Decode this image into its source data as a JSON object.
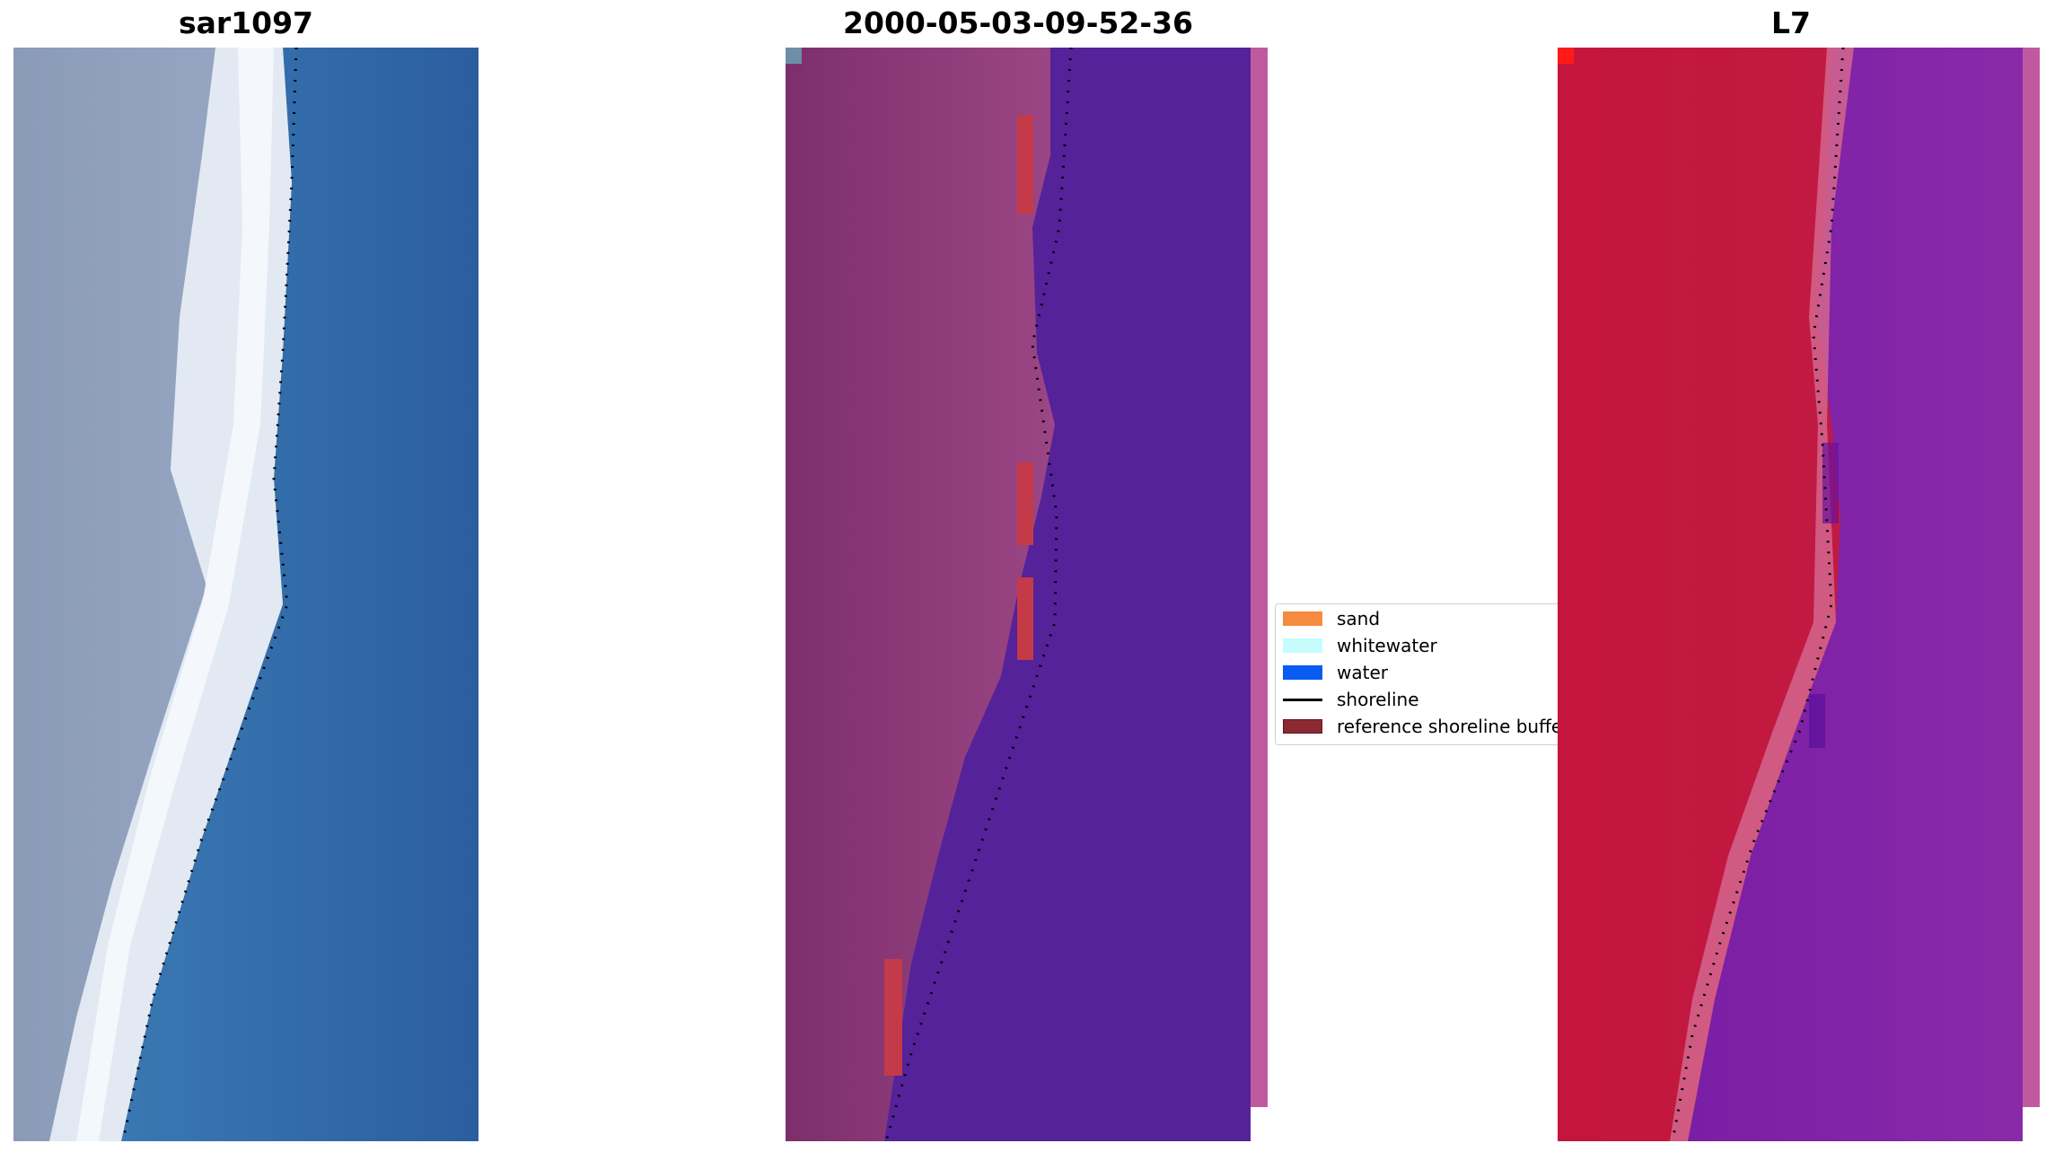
{
  "panels": [
    {
      "id": "rgb",
      "title": "sar1097"
    },
    {
      "id": "classification",
      "title": "2000-05-03-09-52-36"
    },
    {
      "id": "index",
      "title": "L7"
    }
  ],
  "legend": {
    "items": [
      {
        "label": "sand",
        "type": "patch",
        "color": "#f58b3f"
      },
      {
        "label": "whitewater",
        "type": "patch",
        "color": "#c6fcfc"
      },
      {
        "label": "water",
        "type": "patch",
        "color": "#0a5cf0"
      },
      {
        "label": "shoreline",
        "type": "line",
        "color": "#000000"
      },
      {
        "label": "reference shoreline buffer",
        "type": "patch",
        "color": "#8b2a33"
      }
    ]
  },
  "colors": {
    "rgb_land": "#8fa0bd",
    "rgb_beach": "#eaf0f5",
    "rgb_water": "#2f64a6",
    "class_land": "#963e7c",
    "class_water": "#55229a",
    "class_red": "#c43a48",
    "class_edge": "#c05aa0",
    "index_land": "#c8163f",
    "index_water": "#7e1fa2"
  }
}
